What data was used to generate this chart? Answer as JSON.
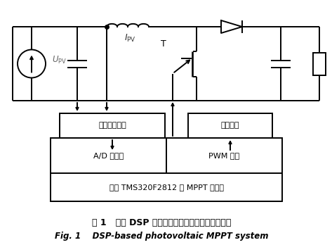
{
  "background_color": "#ffffff",
  "title_zh": "图 1   基于 DSP 控制的光伏发电最大功率跟踪系统",
  "title_en": "Fig. 1    DSP-based photovoltaic MPPT system",
  "box_signal": "信号调理电路",
  "box_drive": "驱动电路",
  "box_ad": "A/D 转换器",
  "box_pwm": "PWM 电路",
  "box_controller": "基于 TMS320F2812 的 MPPT 控制器",
  "label_ipv": "$I_{\\mathrm{PV}}$",
  "label_upv": "$U_{\\mathrm{PV}}$",
  "label_T": "T",
  "circuit_color": "#000000",
  "lw": 1.4
}
